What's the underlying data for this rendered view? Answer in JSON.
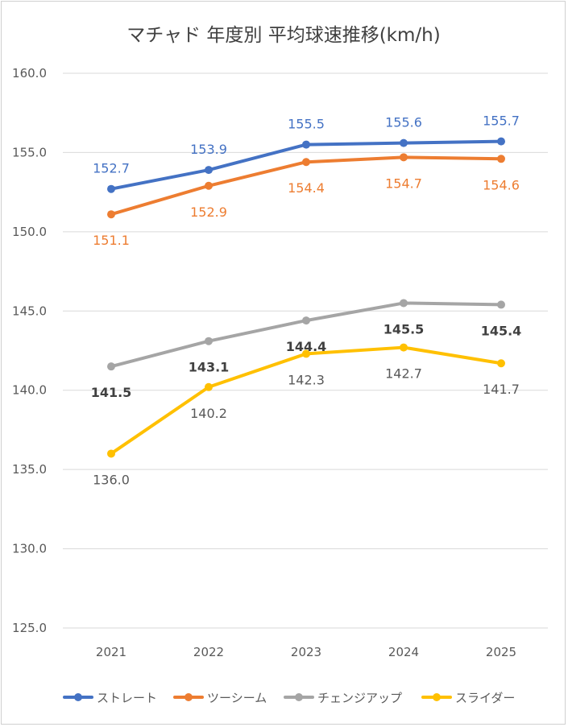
{
  "chart_data": {
    "type": "line",
    "title": "マチャド 年度別 平均球速推移(km/h)",
    "xlabel": "",
    "ylabel": "",
    "categories": [
      "2021",
      "2022",
      "2023",
      "2024",
      "2025"
    ],
    "ylim": [
      125,
      160
    ],
    "y_ticks": [
      "160.0",
      "155.0",
      "150.0",
      "145.0",
      "140.0",
      "135.0",
      "130.0",
      "125.0"
    ],
    "grid": true,
    "legend": "bottom",
    "series": [
      {
        "name": "ストレート",
        "color": "#4472C4",
        "values": [
          152.7,
          153.9,
          155.5,
          155.6,
          155.7
        ],
        "labels": [
          "152.7",
          "153.9",
          "155.5",
          "155.6",
          "155.7"
        ],
        "label_pos": "above"
      },
      {
        "name": "ツーシーム",
        "color": "#ED7D31",
        "values": [
          151.1,
          152.9,
          154.4,
          154.7,
          154.6
        ],
        "labels": [
          "151.1",
          "152.9",
          "154.4",
          "154.7",
          "154.6"
        ],
        "label_pos": "below"
      },
      {
        "name": "チェンジアップ",
        "color": "#A5A5A5",
        "values": [
          141.5,
          143.1,
          144.4,
          145.5,
          145.4
        ],
        "labels": [
          "141.5",
          "143.1",
          "144.4",
          "145.5",
          "145.4"
        ],
        "label_pos": "below"
      },
      {
        "name": "スライダー",
        "color": "#FFC000",
        "values": [
          136.0,
          140.2,
          142.3,
          142.7,
          141.7
        ],
        "labels": [
          "136.0",
          "140.2",
          "142.3",
          "142.7",
          "141.7"
        ],
        "label_pos": "below"
      }
    ]
  }
}
